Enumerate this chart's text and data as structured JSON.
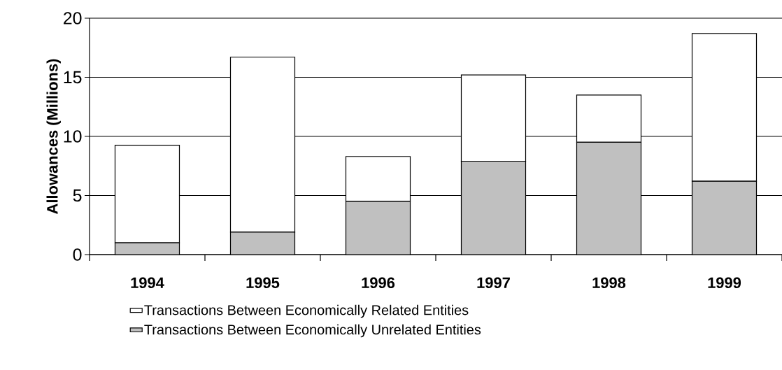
{
  "chart_data": {
    "type": "bar",
    "stacked": true,
    "ylabel": "Allowances (Millions)",
    "categories": [
      "1994",
      "1995",
      "1996",
      "1997",
      "1998",
      "1999"
    ],
    "series": [
      {
        "name": "Transactions Between Economically Unrelated Entities",
        "color": "#c0c0c0",
        "values": [
          1.0,
          1.9,
          4.5,
          7.9,
          9.5,
          6.2
        ]
      },
      {
        "name": "Transactions Between Economically Related Entities",
        "color": "#ffffff",
        "values": [
          8.25,
          14.8,
          3.8,
          7.3,
          4.0,
          12.5
        ]
      }
    ],
    "ylim": [
      0,
      20
    ],
    "yticks": [
      0,
      5,
      10,
      15,
      20
    ],
    "grid": "y",
    "legend": "bottom"
  }
}
